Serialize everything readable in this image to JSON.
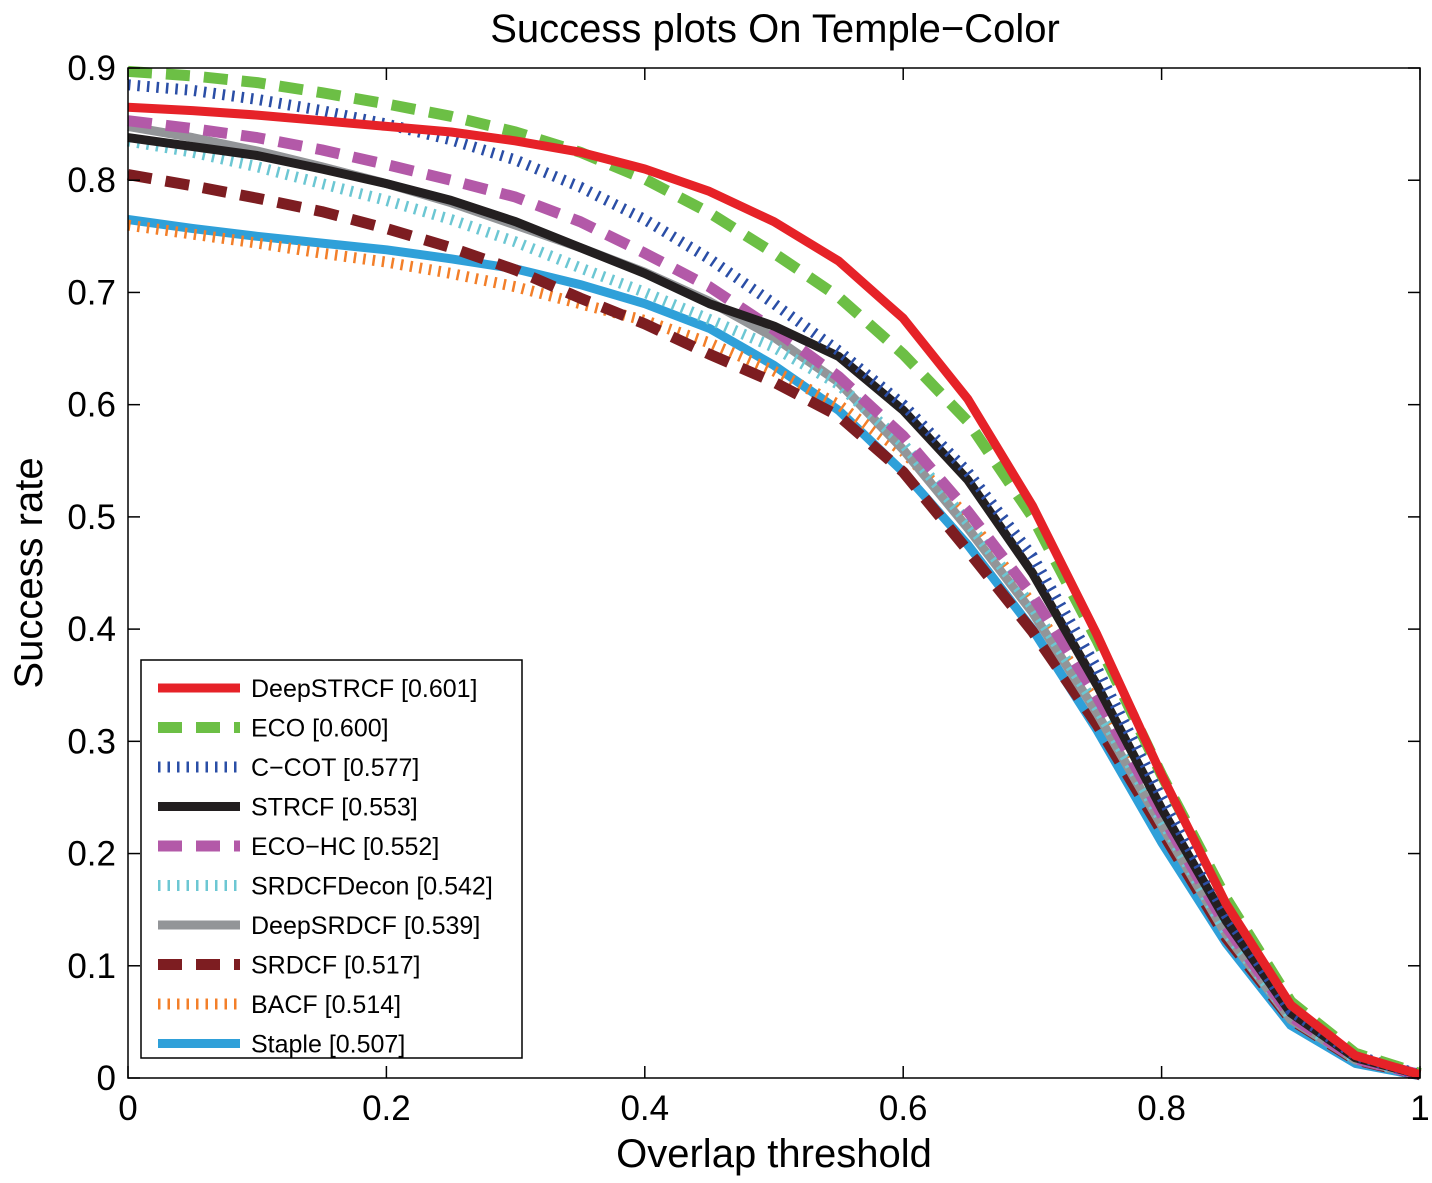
{
  "chart_data": {
    "type": "line",
    "title": "Success plots On Temple−Color",
    "xlabel": "Overlap threshold",
    "ylabel": "Success rate",
    "xlim": [
      0,
      1
    ],
    "ylim": [
      0,
      0.9
    ],
    "xticks": [
      0,
      0.2,
      0.4,
      0.6,
      0.8,
      1
    ],
    "xtick_labels": [
      "0",
      "0.2",
      "0.4",
      "0.6",
      "0.8",
      "1"
    ],
    "yticks": [
      0,
      0.1,
      0.2,
      0.3,
      0.4,
      0.5,
      0.6,
      0.7,
      0.8,
      0.9
    ],
    "ytick_labels": [
      "0",
      "0.1",
      "0.2",
      "0.3",
      "0.4",
      "0.5",
      "0.6",
      "0.7",
      "0.8",
      "0.9"
    ],
    "grid": false,
    "legend_position": "bottom-left",
    "x": [
      0,
      0.05,
      0.1,
      0.15,
      0.2,
      0.25,
      0.3,
      0.35,
      0.4,
      0.45,
      0.5,
      0.55,
      0.6,
      0.65,
      0.7,
      0.75,
      0.8,
      0.85,
      0.9,
      0.95,
      1
    ],
    "series": [
      {
        "name": "DeepSTRCF [0.601]",
        "color": "#e62228",
        "style": "solid",
        "values": [
          0.865,
          0.862,
          0.858,
          0.853,
          0.848,
          0.843,
          0.835,
          0.825,
          0.81,
          0.79,
          0.763,
          0.728,
          0.677,
          0.605,
          0.51,
          0.395,
          0.27,
          0.155,
          0.065,
          0.02,
          0.003
        ]
      },
      {
        "name": "ECO [0.600]",
        "color": "#6cbf45",
        "style": "dash",
        "values": [
          0.897,
          0.893,
          0.887,
          0.878,
          0.868,
          0.857,
          0.843,
          0.825,
          0.801,
          0.771,
          0.735,
          0.696,
          0.645,
          0.585,
          0.5,
          0.39,
          0.27,
          0.16,
          0.068,
          0.022,
          0.004
        ]
      },
      {
        "name": "C−COT [0.577]",
        "color": "#2a4ea6",
        "style": "dot",
        "values": [
          0.885,
          0.88,
          0.872,
          0.862,
          0.85,
          0.836,
          0.818,
          0.794,
          0.765,
          0.73,
          0.69,
          0.648,
          0.6,
          0.54,
          0.465,
          0.365,
          0.25,
          0.145,
          0.06,
          0.02,
          0.003
        ]
      },
      {
        "name": "STRCF [0.553]",
        "color": "#231f20",
        "style": "solid",
        "values": [
          0.838,
          0.83,
          0.822,
          0.81,
          0.797,
          0.782,
          0.763,
          0.74,
          0.717,
          0.69,
          0.67,
          0.643,
          0.595,
          0.533,
          0.45,
          0.35,
          0.24,
          0.14,
          0.058,
          0.018,
          0.003
        ]
      },
      {
        "name": "ECO−HC [0.552]",
        "color": "#b359a8",
        "style": "dash",
        "values": [
          0.853,
          0.846,
          0.838,
          0.827,
          0.814,
          0.8,
          0.785,
          0.763,
          0.735,
          0.705,
          0.667,
          0.625,
          0.572,
          0.505,
          0.43,
          0.34,
          0.235,
          0.135,
          0.055,
          0.017,
          0.003
        ]
      },
      {
        "name": "SRDCFDecon [0.542]",
        "color": "#6cc7d3",
        "style": "dot",
        "values": [
          0.835,
          0.825,
          0.812,
          0.797,
          0.782,
          0.765,
          0.745,
          0.722,
          0.7,
          0.676,
          0.651,
          0.618,
          0.565,
          0.495,
          0.42,
          0.33,
          0.23,
          0.13,
          0.055,
          0.017,
          0.003
        ]
      },
      {
        "name": "DeepSRDCF [0.539]",
        "color": "#939598",
        "style": "solid",
        "values": [
          0.848,
          0.838,
          0.826,
          0.812,
          0.797,
          0.78,
          0.76,
          0.74,
          0.718,
          0.692,
          0.66,
          0.62,
          0.56,
          0.49,
          0.415,
          0.325,
          0.225,
          0.128,
          0.052,
          0.016,
          0.003
        ]
      },
      {
        "name": "SRDCF [0.517]",
        "color": "#7d1d21",
        "style": "dash",
        "values": [
          0.805,
          0.795,
          0.784,
          0.772,
          0.757,
          0.74,
          0.72,
          0.695,
          0.672,
          0.645,
          0.62,
          0.59,
          0.54,
          0.47,
          0.398,
          0.315,
          0.22,
          0.125,
          0.052,
          0.016,
          0.003
        ]
      },
      {
        "name": "BACF [0.514]",
        "color": "#f37f29",
        "style": "dot",
        "values": [
          0.76,
          0.752,
          0.744,
          0.735,
          0.727,
          0.717,
          0.705,
          0.69,
          0.675,
          0.655,
          0.63,
          0.6,
          0.558,
          0.5,
          0.422,
          0.333,
          0.232,
          0.135,
          0.056,
          0.017,
          0.003
        ]
      },
      {
        "name": "Staple [0.507]",
        "color": "#2fa0d9",
        "style": "solid",
        "values": [
          0.765,
          0.757,
          0.75,
          0.744,
          0.738,
          0.73,
          0.721,
          0.707,
          0.69,
          0.668,
          0.635,
          0.595,
          0.54,
          0.475,
          0.4,
          0.31,
          0.21,
          0.12,
          0.047,
          0.013,
          0.002
        ]
      }
    ]
  }
}
